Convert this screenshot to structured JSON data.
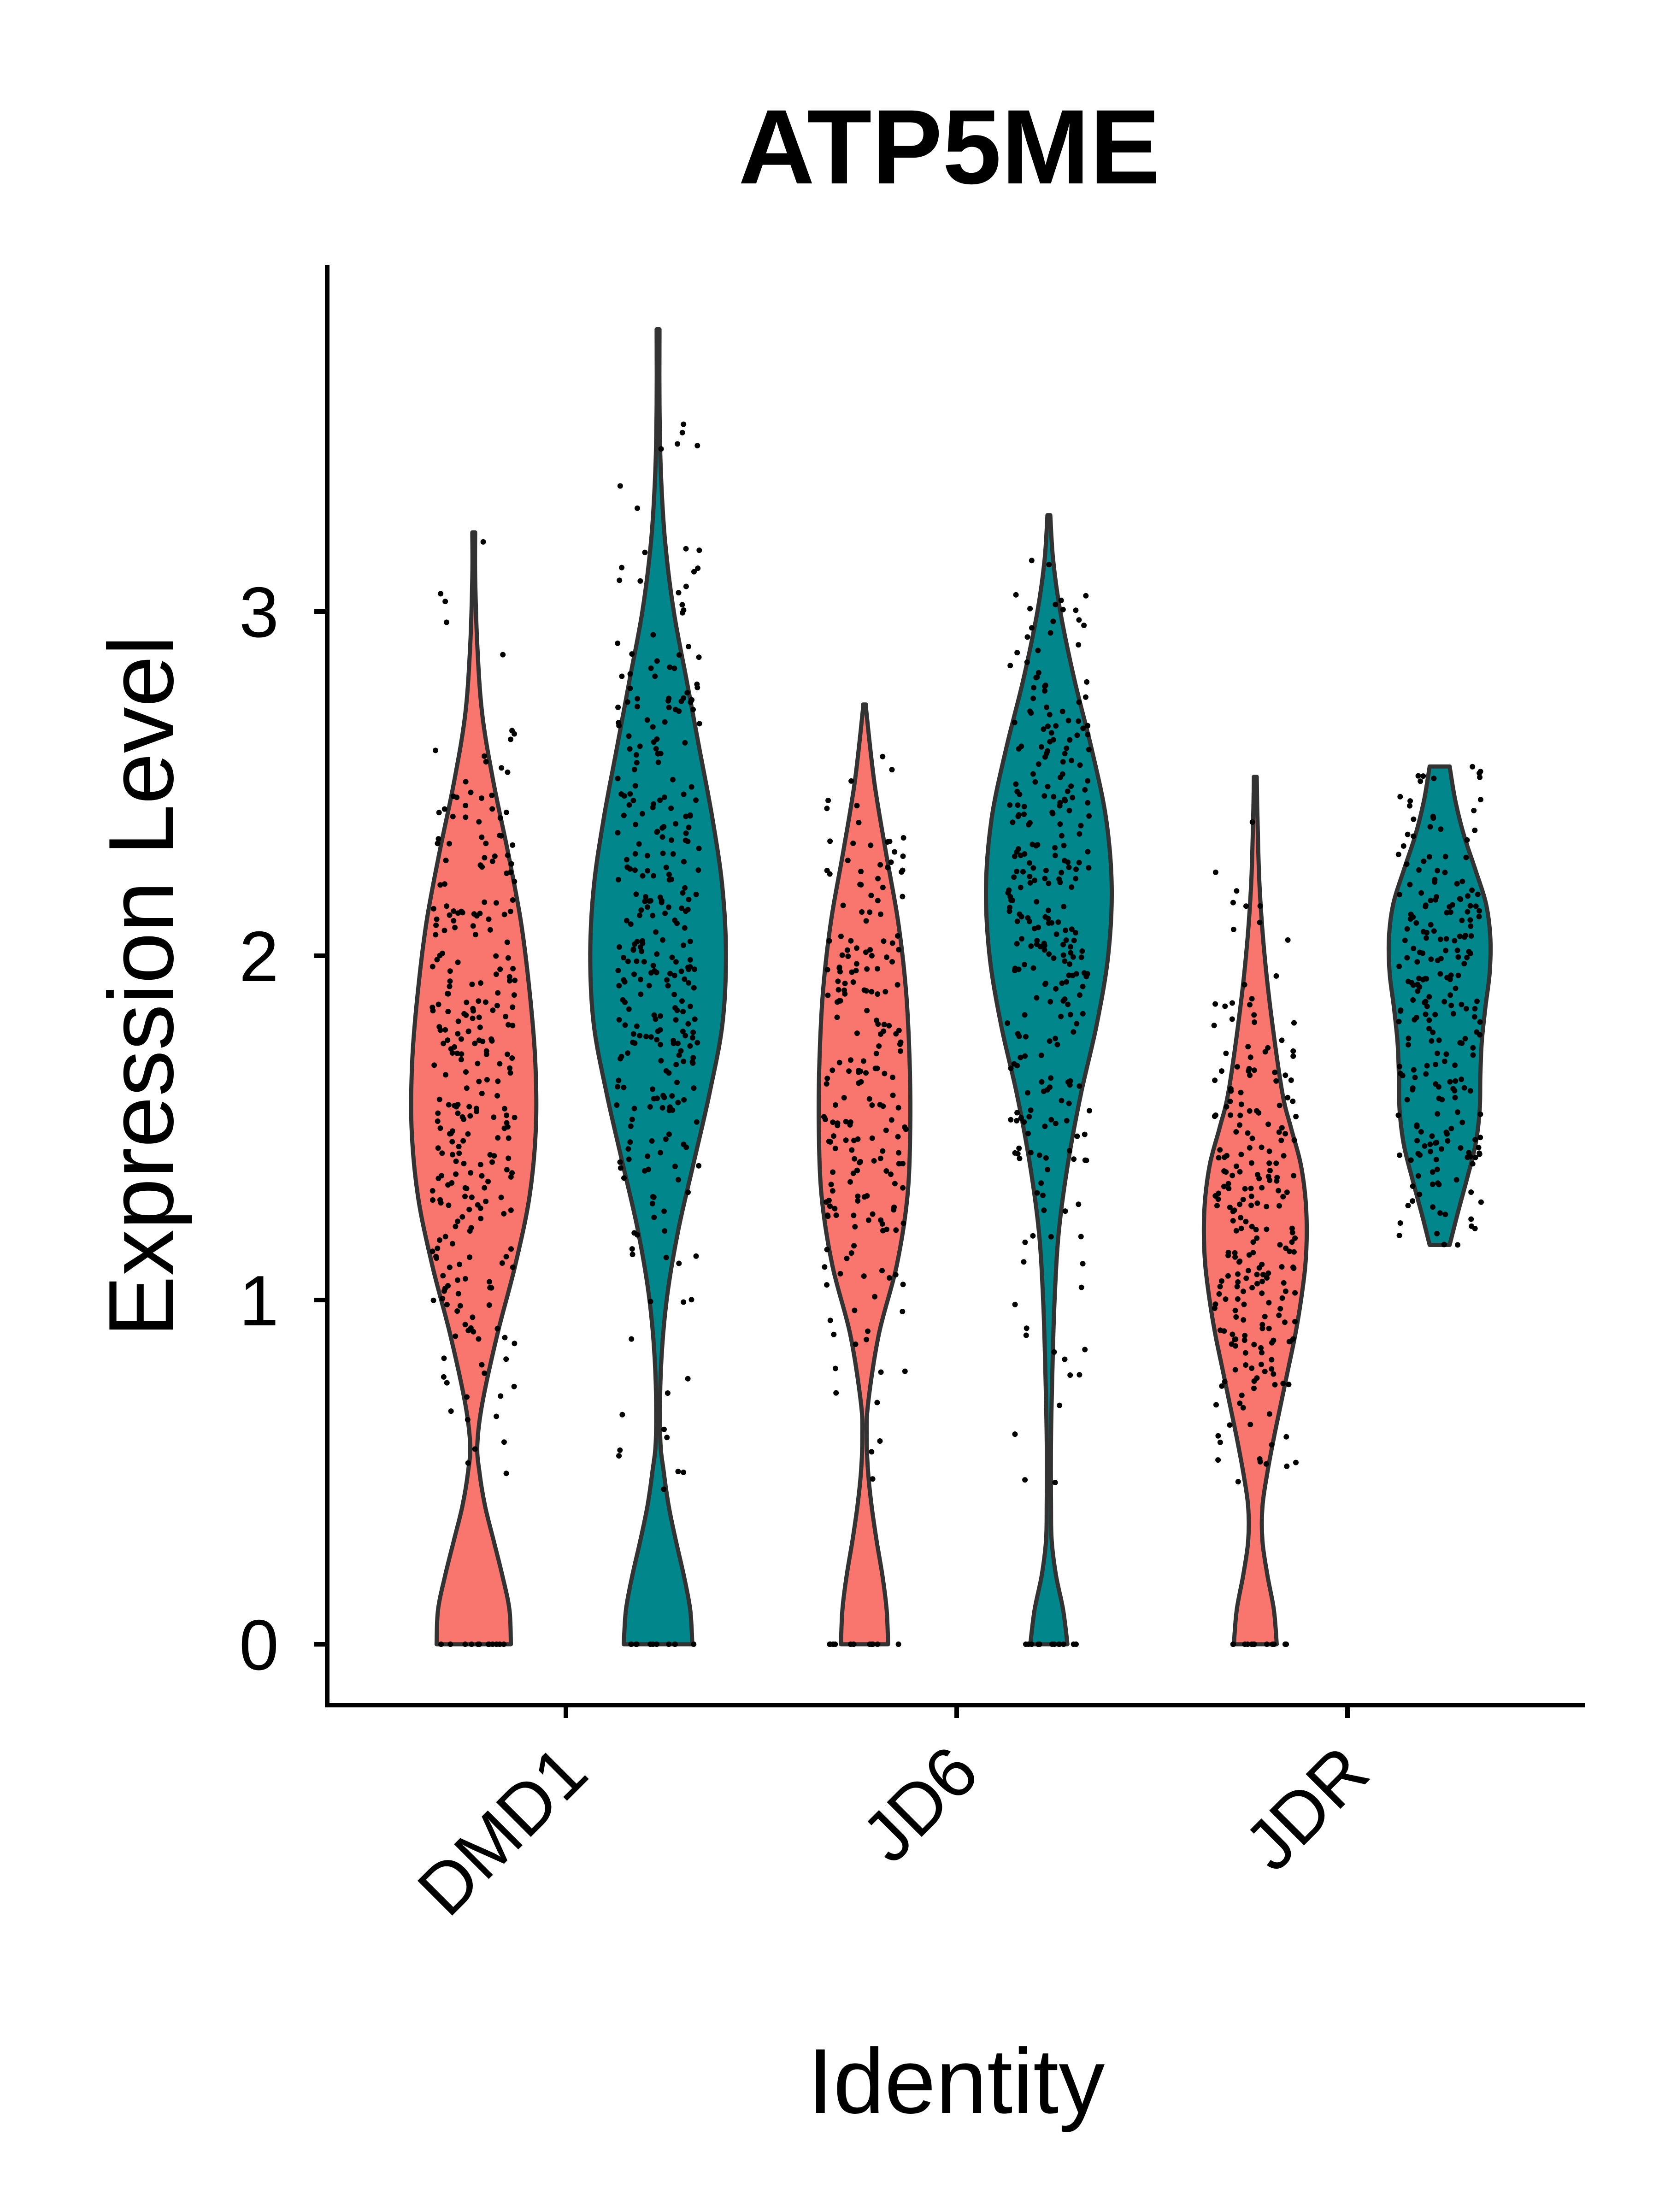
{
  "chart_data": {
    "type": "violin",
    "title": "ATP5ME",
    "xlabel": "Identity",
    "ylabel": "Expression Level",
    "categories": [
      "DMD1",
      "JD6",
      "JDR"
    ],
    "yticks": [
      0,
      1,
      2,
      3
    ],
    "ylim": [
      -0.18,
      4.0
    ],
    "grid": false,
    "legend": "none",
    "colors": [
      "#F8766D",
      "#00868B"
    ],
    "violins": [
      {
        "category": "DMD1",
        "group": 1,
        "color": "#F8766D",
        "min": 0,
        "max": 3.23,
        "profile": [
          [
            0,
            0.52
          ],
          [
            0.1,
            0.5
          ],
          [
            0.2,
            0.4
          ],
          [
            0.3,
            0.28
          ],
          [
            0.4,
            0.16
          ],
          [
            0.5,
            0.08
          ],
          [
            0.58,
            0.05
          ],
          [
            0.7,
            0.12
          ],
          [
            0.9,
            0.33
          ],
          [
            1.1,
            0.58
          ],
          [
            1.3,
            0.78
          ],
          [
            1.5,
            0.87
          ],
          [
            1.7,
            0.86
          ],
          [
            1.9,
            0.78
          ],
          [
            2.1,
            0.66
          ],
          [
            2.3,
            0.48
          ],
          [
            2.5,
            0.28
          ],
          [
            2.7,
            0.12
          ],
          [
            2.9,
            0.05
          ],
          [
            3.1,
            0.02
          ],
          [
            3.23,
            0.02
          ]
        ]
      },
      {
        "category": "DMD1",
        "group": 2,
        "color": "#00868B",
        "min": 0,
        "max": 3.82,
        "profile": [
          [
            0,
            0.48
          ],
          [
            0.1,
            0.45
          ],
          [
            0.2,
            0.36
          ],
          [
            0.3,
            0.25
          ],
          [
            0.4,
            0.15
          ],
          [
            0.5,
            0.08
          ],
          [
            0.6,
            0.03
          ],
          [
            0.8,
            0.04
          ],
          [
            1.0,
            0.12
          ],
          [
            1.2,
            0.28
          ],
          [
            1.4,
            0.5
          ],
          [
            1.6,
            0.72
          ],
          [
            1.8,
            0.9
          ],
          [
            2.0,
            0.95
          ],
          [
            2.2,
            0.9
          ],
          [
            2.4,
            0.76
          ],
          [
            2.6,
            0.58
          ],
          [
            2.8,
            0.4
          ],
          [
            3.0,
            0.22
          ],
          [
            3.2,
            0.1
          ],
          [
            3.4,
            0.04
          ],
          [
            3.6,
            0.02
          ],
          [
            3.82,
            0.02
          ]
        ]
      },
      {
        "category": "JD6",
        "group": 1,
        "color": "#F8766D",
        "min": 0,
        "max": 2.73,
        "profile": [
          [
            0,
            0.33
          ],
          [
            0.1,
            0.31
          ],
          [
            0.2,
            0.25
          ],
          [
            0.3,
            0.17
          ],
          [
            0.4,
            0.1
          ],
          [
            0.5,
            0.05
          ],
          [
            0.6,
            0.03
          ],
          [
            0.7,
            0.05
          ],
          [
            0.9,
            0.2
          ],
          [
            1.1,
            0.45
          ],
          [
            1.3,
            0.6
          ],
          [
            1.5,
            0.64
          ],
          [
            1.7,
            0.63
          ],
          [
            1.9,
            0.58
          ],
          [
            2.1,
            0.47
          ],
          [
            2.3,
            0.3
          ],
          [
            2.5,
            0.14
          ],
          [
            2.7,
            0.03
          ],
          [
            2.73,
            0.02
          ]
        ]
      },
      {
        "category": "JD6",
        "group": 2,
        "color": "#00868B",
        "min": 0,
        "max": 3.28,
        "profile": [
          [
            0,
            0.26
          ],
          [
            0.1,
            0.2
          ],
          [
            0.2,
            0.1
          ],
          [
            0.3,
            0.04
          ],
          [
            0.4,
            0.03
          ],
          [
            0.6,
            0.03
          ],
          [
            0.8,
            0.05
          ],
          [
            1.0,
            0.08
          ],
          [
            1.2,
            0.14
          ],
          [
            1.4,
            0.27
          ],
          [
            1.6,
            0.45
          ],
          [
            1.8,
            0.67
          ],
          [
            2.0,
            0.83
          ],
          [
            2.2,
            0.88
          ],
          [
            2.4,
            0.8
          ],
          [
            2.6,
            0.6
          ],
          [
            2.8,
            0.36
          ],
          [
            3.0,
            0.16
          ],
          [
            3.15,
            0.06
          ],
          [
            3.28,
            0.02
          ]
        ]
      },
      {
        "category": "JDR",
        "group": 1,
        "color": "#F8766D",
        "min": 0,
        "max": 2.52,
        "profile": [
          [
            0,
            0.3
          ],
          [
            0.1,
            0.26
          ],
          [
            0.2,
            0.17
          ],
          [
            0.3,
            0.1
          ],
          [
            0.4,
            0.1
          ],
          [
            0.5,
            0.17
          ],
          [
            0.6,
            0.26
          ],
          [
            0.7,
            0.36
          ],
          [
            0.8,
            0.46
          ],
          [
            0.9,
            0.56
          ],
          [
            1.0,
            0.64
          ],
          [
            1.1,
            0.7
          ],
          [
            1.2,
            0.72
          ],
          [
            1.3,
            0.7
          ],
          [
            1.4,
            0.63
          ],
          [
            1.5,
            0.5
          ],
          [
            1.6,
            0.38
          ],
          [
            1.8,
            0.24
          ],
          [
            2.0,
            0.13
          ],
          [
            2.2,
            0.06
          ],
          [
            2.4,
            0.03
          ],
          [
            2.52,
            0.02
          ]
        ]
      },
      {
        "category": "JDR",
        "group": 2,
        "color": "#00868B",
        "min": 1.16,
        "max": 2.55,
        "profile": [
          [
            1.16,
            0.14
          ],
          [
            1.25,
            0.25
          ],
          [
            1.35,
            0.38
          ],
          [
            1.45,
            0.5
          ],
          [
            1.55,
            0.56
          ],
          [
            1.65,
            0.57
          ],
          [
            1.75,
            0.59
          ],
          [
            1.85,
            0.64
          ],
          [
            1.95,
            0.7
          ],
          [
            2.05,
            0.71
          ],
          [
            2.15,
            0.65
          ],
          [
            2.25,
            0.5
          ],
          [
            2.35,
            0.34
          ],
          [
            2.45,
            0.22
          ],
          [
            2.55,
            0.14
          ]
        ]
      }
    ]
  }
}
